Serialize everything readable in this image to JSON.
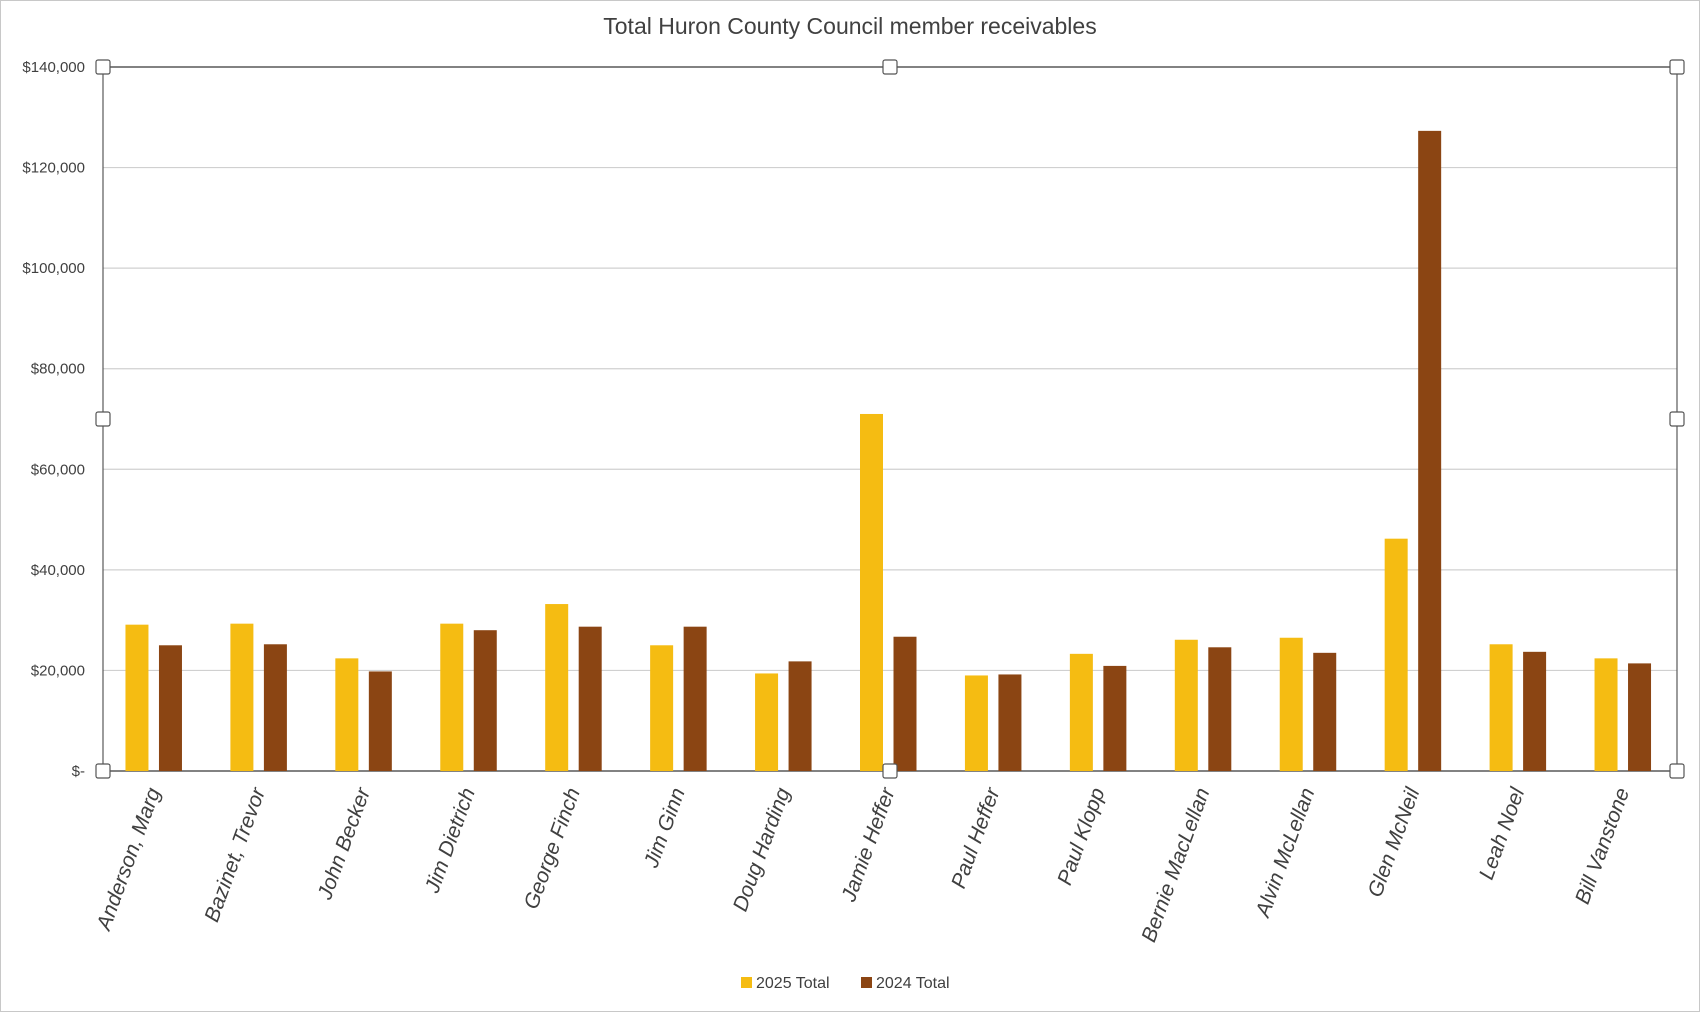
{
  "chart_data": {
    "type": "bar",
    "title": "Total Huron County Council member receivables",
    "xlabel": "",
    "ylabel": "",
    "ylim": [
      0,
      140000
    ],
    "yticks": [
      0,
      20000,
      40000,
      60000,
      80000,
      100000,
      120000,
      140000
    ],
    "ytick_labels": [
      "$-",
      "$20,000",
      "$40,000",
      "$60,000",
      "$80,000",
      "$100,000",
      "$120,000",
      "$140,000"
    ],
    "grid": true,
    "legend_position": "bottom",
    "categories": [
      "Anderson,  Marg",
      "Bazinet, Trevor",
      "John Becker",
      "Jim Dietrich",
      "George Finch",
      "Jim Ginn",
      "Doug Harding",
      "Jamie Heffer",
      "Paul Heffer",
      "Paul Klopp",
      "Bernie MacLellan",
      "Alvin McLellan",
      "Glen McNeil",
      "Leah Noel",
      "Bill Vanstone"
    ],
    "series": [
      {
        "name": "2025  Total",
        "color": "#F5BC12",
        "values": [
          29100,
          29300,
          22400,
          29300,
          33200,
          25000,
          19400,
          71000,
          19000,
          23300,
          26100,
          26500,
          46200,
          25200,
          22400
        ]
      },
      {
        "name": "2024  Total",
        "color": "#8B4513",
        "values": [
          25000,
          25200,
          19800,
          28000,
          28700,
          28700,
          21800,
          26700,
          19200,
          20900,
          24600,
          23500,
          127300,
          23700,
          21400
        ]
      }
    ]
  }
}
